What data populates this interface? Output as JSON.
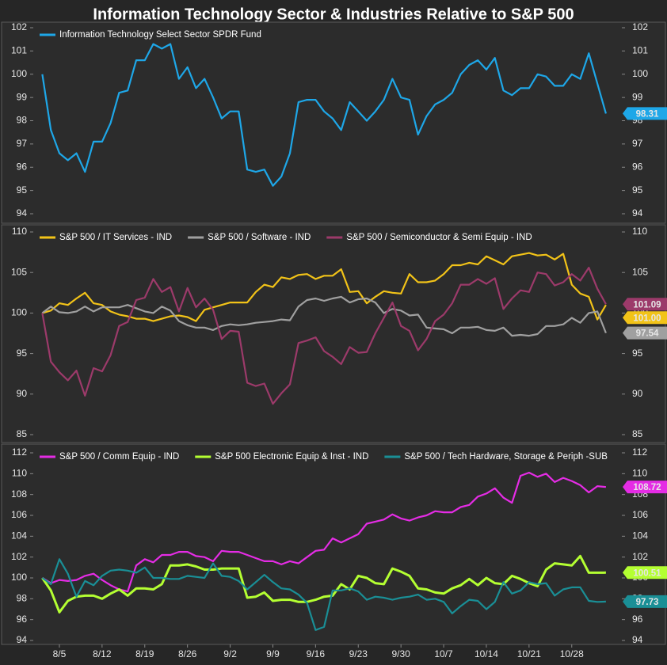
{
  "title": "Information Technology Sector & Industries Relative to S&P 500",
  "chart_data": [
    {
      "type": "line",
      "ylim": [
        94,
        102
      ],
      "yticks": [
        94,
        95,
        96,
        97,
        98,
        99,
        100,
        101,
        102
      ],
      "series": [
        {
          "name": "Information Technology Select Sector SPDR Fund",
          "color": "#1ea7e8",
          "end_label": "98.31",
          "values": [
            100.0,
            97.6,
            96.6,
            96.3,
            96.6,
            95.8,
            97.1,
            97.1,
            97.9,
            99.2,
            99.3,
            100.6,
            100.6,
            101.3,
            101.1,
            101.3,
            99.8,
            100.3,
            99.4,
            99.8,
            99.0,
            98.1,
            98.4,
            98.4,
            95.9,
            95.8,
            95.9,
            95.2,
            95.6,
            96.6,
            98.8,
            98.9,
            98.9,
            98.4,
            98.1,
            97.6,
            98.8,
            98.4,
            98.0,
            98.4,
            98.9,
            99.8,
            99.0,
            98.9,
            97.4,
            98.2,
            98.7,
            98.9,
            99.2,
            100.0,
            100.4,
            100.6,
            100.2,
            100.7,
            99.3,
            99.1,
            99.4,
            99.4,
            100.0,
            99.9,
            99.5,
            99.5,
            100.0,
            99.8,
            100.9,
            99.6,
            98.31
          ]
        }
      ]
    },
    {
      "type": "line",
      "ylim": [
        85,
        110
      ],
      "yticks": [
        85,
        90,
        95,
        100,
        105,
        110
      ],
      "series": [
        {
          "name": "S&P 500 / IT Services - IND",
          "color": "#f2c318",
          "end_label": "101.00",
          "values": [
            100.0,
            100.3,
            101.2,
            101.0,
            101.8,
            102.5,
            101.2,
            101.0,
            100.2,
            99.8,
            99.6,
            99.3,
            99.3,
            99.0,
            99.3,
            99.6,
            99.7,
            99.5,
            99.0,
            100.4,
            100.7,
            101.0,
            101.3,
            101.3,
            101.3,
            102.6,
            103.5,
            103.2,
            104.4,
            104.2,
            104.7,
            104.8,
            104.2,
            104.6,
            104.6,
            105.4,
            102.6,
            102.7,
            101.2,
            102.0,
            102.7,
            102.5,
            102.4,
            104.8,
            103.8,
            103.8,
            104.0,
            104.8,
            105.9,
            105.9,
            106.2,
            106.0,
            107.0,
            106.5,
            106.0,
            107.0,
            107.2,
            107.4,
            107.1,
            107.2,
            106.6,
            107.3,
            103.5,
            102.4,
            102.0,
            99.2,
            101.0
          ]
        },
        {
          "name": "S&P 500 / Software - IND",
          "color": "#a0a0a0",
          "end_label": "97.54",
          "values": [
            100.0,
            100.8,
            100.1,
            100.0,
            100.2,
            100.8,
            100.2,
            100.7,
            100.7,
            100.7,
            101.0,
            100.6,
            100.2,
            100.0,
            100.8,
            100.3,
            99.0,
            98.5,
            98.2,
            98.2,
            97.9,
            98.4,
            98.6,
            98.5,
            98.6,
            98.8,
            98.9,
            99.0,
            99.2,
            99.1,
            100.8,
            101.6,
            101.8,
            101.5,
            101.8,
            102.0,
            101.3,
            101.7,
            101.8,
            101.3,
            100.0,
            100.5,
            100.3,
            99.7,
            99.8,
            98.2,
            98.1,
            98.0,
            97.5,
            98.2,
            98.2,
            98.3,
            97.9,
            97.8,
            98.2,
            97.2,
            97.3,
            97.2,
            97.4,
            98.4,
            98.4,
            98.6,
            99.4,
            98.8,
            100.0,
            100.2,
            97.54
          ]
        },
        {
          "name": "S&P 500 / Semiconductor & Semi Equip - IND",
          "color": "#9c3a6a",
          "end_label": "101.09",
          "values": [
            100.0,
            94.0,
            92.7,
            91.7,
            92.9,
            89.8,
            93.2,
            92.8,
            94.8,
            98.4,
            98.9,
            101.6,
            101.9,
            104.2,
            102.6,
            103.2,
            100.2,
            103.1,
            100.7,
            101.8,
            100.4,
            96.8,
            97.8,
            97.7,
            91.4,
            91.0,
            91.3,
            88.8,
            90.1,
            91.2,
            96.3,
            96.6,
            97.0,
            95.3,
            94.6,
            93.7,
            95.8,
            95.1,
            95.2,
            97.5,
            99.4,
            101.3,
            98.4,
            97.8,
            95.4,
            96.8,
            99.0,
            99.8,
            101.2,
            103.5,
            103.5,
            104.2,
            103.6,
            104.3,
            100.5,
            101.8,
            102.8,
            102.6,
            105.0,
            104.8,
            103.4,
            103.8,
            104.8,
            104.0,
            105.6,
            103.0,
            101.09
          ]
        }
      ]
    },
    {
      "type": "line",
      "ylim": [
        94,
        112
      ],
      "yticks": [
        94,
        96,
        98,
        100,
        102,
        104,
        106,
        108,
        110,
        112
      ],
      "categories": [
        null,
        null,
        "8/5",
        null,
        null,
        null,
        null,
        "8/12",
        null,
        null,
        null,
        null,
        "8/19",
        null,
        null,
        null,
        null,
        "8/26",
        null,
        null,
        null,
        null,
        "9/2",
        null,
        null,
        null,
        null,
        "9/9",
        null,
        null,
        null,
        null,
        "9/16",
        null,
        null,
        null,
        null,
        "9/23",
        null,
        null,
        null,
        null,
        "9/30",
        null,
        null,
        null,
        null,
        "10/7",
        null,
        null,
        null,
        null,
        "10/14",
        null,
        null,
        null,
        null,
        "10/21",
        null,
        null,
        null,
        null,
        "10/28",
        null,
        null,
        null,
        null
      ],
      "series": [
        {
          "name": "S&P 500 / Comm Equip - IND",
          "color": "#e52ce5",
          "end_label": "108.72",
          "values": [
            100.0,
            99.5,
            99.8,
            99.7,
            99.8,
            100.2,
            100.4,
            99.8,
            99.3,
            98.9,
            98.7,
            101.2,
            101.8,
            101.5,
            102.2,
            102.2,
            102.5,
            102.5,
            102.1,
            102.0,
            101.6,
            102.6,
            102.5,
            102.5,
            102.2,
            101.9,
            101.6,
            101.6,
            101.3,
            101.6,
            101.4,
            102.0,
            102.6,
            102.7,
            103.8,
            103.4,
            103.8,
            104.2,
            105.2,
            105.4,
            105.6,
            106.1,
            105.7,
            105.5,
            105.8,
            106.0,
            106.4,
            106.3,
            106.3,
            106.8,
            107.0,
            107.8,
            108.1,
            108.6,
            107.7,
            107.2,
            109.8,
            110.1,
            109.7,
            110.0,
            109.2,
            109.6,
            109.3,
            108.9,
            108.2,
            108.8,
            108.72
          ]
        },
        {
          "name": "S&P 500 Electronic Equip & Inst - IND",
          "color": "#b4ff32",
          "end_label": "100.51",
          "width": 3,
          "values": [
            100.0,
            98.8,
            96.7,
            97.8,
            98.2,
            98.3,
            98.3,
            98.0,
            98.5,
            98.9,
            98.3,
            99.0,
            99.0,
            98.9,
            99.4,
            101.2,
            101.2,
            101.3,
            101.1,
            100.8,
            100.8,
            100.9,
            100.9,
            100.9,
            98.1,
            98.2,
            98.6,
            97.8,
            97.9,
            97.9,
            97.7,
            97.7,
            97.9,
            98.2,
            98.3,
            99.4,
            98.9,
            100.2,
            100.0,
            99.5,
            99.4,
            100.9,
            100.6,
            100.2,
            99.0,
            98.9,
            98.6,
            98.5,
            99.0,
            99.3,
            99.9,
            99.3,
            100.0,
            99.5,
            99.4,
            100.2,
            99.9,
            99.5,
            99.2,
            100.8,
            101.4,
            101.3,
            101.2,
            102.1,
            100.5,
            100.5,
            100.51
          ]
        },
        {
          "name": "S&P 500 / Tech Hardware, Storage & Periph -SUB",
          "color": "#1a8f96",
          "end_label": "97.73",
          "values": [
            100.0,
            99.4,
            101.8,
            100.4,
            98.2,
            99.7,
            99.3,
            100.2,
            100.7,
            100.8,
            100.7,
            100.5,
            101.0,
            100.0,
            100.0,
            99.9,
            99.9,
            100.2,
            100.1,
            100.0,
            101.4,
            100.2,
            100.1,
            99.7,
            98.9,
            99.6,
            100.3,
            99.6,
            99.0,
            98.9,
            98.4,
            97.6,
            95.0,
            95.3,
            98.8,
            98.8,
            99.0,
            98.7,
            97.9,
            98.2,
            98.1,
            97.9,
            98.1,
            98.2,
            98.4,
            97.9,
            98.0,
            97.7,
            96.6,
            97.3,
            97.9,
            97.8,
            97.0,
            97.7,
            99.6,
            98.5,
            98.8,
            99.6,
            99.4,
            99.5,
            98.3,
            98.9,
            99.1,
            99.1,
            97.8,
            97.7,
            97.73
          ]
        }
      ]
    }
  ]
}
